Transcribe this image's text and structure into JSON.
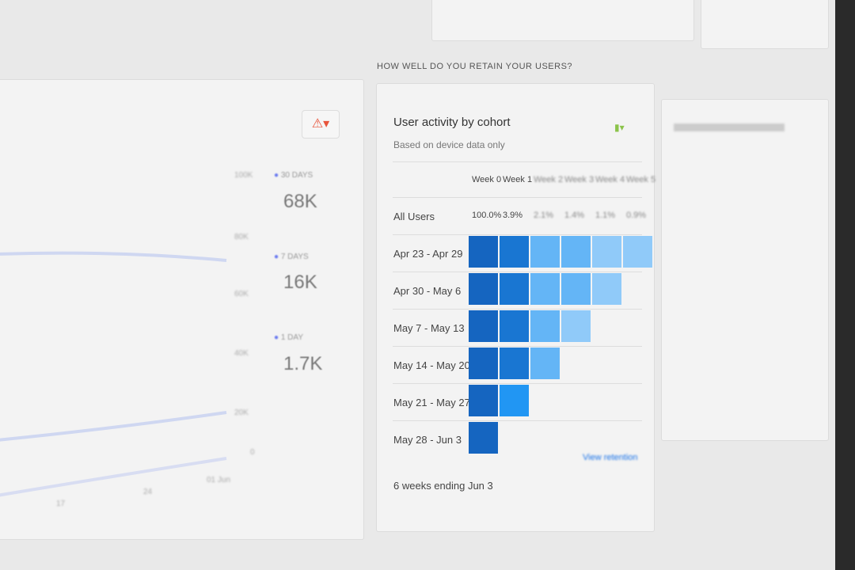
{
  "section_heading": "HOW WELL DO YOU RETAIN YOUR USERS?",
  "cohort_card": {
    "title": "User activity by cohort",
    "subtitle": "Based on device data only",
    "weeks": [
      "Week 0",
      "Week 1",
      "Week 2",
      "Week 3",
      "Week 4",
      "Week 5"
    ],
    "all_users_label": "All Users",
    "all_users_values": [
      "100.0%",
      "3.9%",
      "2.1%",
      "1.4%",
      "1.1%",
      "0.9%"
    ],
    "cohorts": [
      "Apr 23 - Apr 29",
      "Apr 30 - May 6",
      "May 7 - May 13",
      "May 14 - May 20",
      "May 21 - May 27",
      "May 28 - Jun 3"
    ],
    "footer": "6 weeks ending Jun 3",
    "link": "View retention",
    "colors": {
      "week0": "#1565c0",
      "week1": "#1976d2",
      "light": "#64b5f6",
      "lighter": "#90caf9"
    }
  },
  "active_users_card": {
    "y_ticks": [
      "100K",
      "80K",
      "60K",
      "40K",
      "20K",
      "0"
    ],
    "legend": [
      {
        "label": "30 DAYS",
        "value": "68K"
      },
      {
        "label": "7 DAYS",
        "value": "16K"
      },
      {
        "label": "1 DAY",
        "value": "1.7K"
      }
    ],
    "x_ticks": [
      "17",
      "24",
      "01 Jun"
    ]
  }
}
